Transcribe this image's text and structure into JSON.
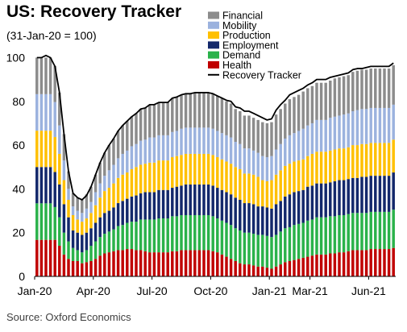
{
  "title": "US: Recovery Tracker",
  "subtitle": "(31-Jan-20 = 100)",
  "source": "Source: Oxford Economics",
  "chart_data": {
    "type": "bar",
    "stacked": true,
    "y_ticks": [
      "0",
      "20",
      "40",
      "60",
      "80",
      "100"
    ],
    "ylim": [
      0,
      108
    ],
    "x_tick_labels": [
      "Jan-20",
      "Apr-20",
      "Jul-20",
      "Oct-20",
      "Jan-21",
      "Mar-21",
      "Jun-21"
    ],
    "x_tick_weeks": [
      0,
      13,
      26,
      39,
      52,
      61,
      74
    ],
    "weeks": 80,
    "legend_position": "top-right",
    "grid": false,
    "legend": [
      {
        "label": "Financial",
        "color": "#8c8c8c",
        "kind": "bar"
      },
      {
        "label": "Mobility",
        "color": "#9bb2de",
        "kind": "bar"
      },
      {
        "label": "Production",
        "color": "#ffc000",
        "kind": "bar"
      },
      {
        "label": "Employment",
        "color": "#13286b",
        "kind": "bar"
      },
      {
        "label": "Demand",
        "color": "#2ab24a",
        "kind": "bar"
      },
      {
        "label": "Health",
        "color": "#c00000",
        "kind": "bar"
      },
      {
        "label": "Recovery Tracker",
        "color": "#000000",
        "kind": "line"
      }
    ],
    "series": [
      {
        "name": "Health",
        "color": "#c00000",
        "values": [
          16.7,
          16.7,
          16.7,
          16.7,
          16.7,
          14,
          10,
          8,
          7,
          7,
          6,
          6.5,
          7,
          8,
          9.5,
          10.5,
          11,
          11.5,
          12,
          12,
          12.5,
          12.5,
          12,
          12,
          11.5,
          11,
          11,
          11,
          11,
          11,
          11.5,
          11.5,
          12,
          12,
          12,
          12,
          12,
          12,
          12,
          11.5,
          11,
          10,
          9,
          8,
          7,
          6,
          5.5,
          5.5,
          5,
          4.5,
          4.5,
          4,
          3.5,
          4.5,
          5.5,
          6.5,
          7,
          7.5,
          8,
          8.5,
          9,
          9.5,
          10,
          10,
          10,
          10.5,
          10.5,
          11,
          11,
          11.5,
          12,
          12,
          12,
          12,
          12.5,
          12.5,
          12.5,
          12.5,
          12.5,
          13
        ]
      },
      {
        "name": "Demand",
        "color": "#2ab24a",
        "values": [
          16.7,
          16.7,
          16.7,
          16.7,
          15,
          13,
          10,
          8,
          6,
          5,
          5,
          5.5,
          7,
          8,
          8.5,
          9,
          9.5,
          10,
          11,
          11.5,
          12,
          12.5,
          13,
          14,
          14.5,
          15,
          15,
          15.5,
          15.5,
          15.5,
          16,
          16,
          16,
          16,
          16,
          16,
          16,
          16,
          16,
          16,
          15.5,
          15.5,
          15.5,
          15.5,
          15,
          15,
          14.5,
          14.5,
          14.5,
          14.5,
          14.5,
          14.5,
          14.5,
          14.5,
          15,
          15.5,
          15.5,
          16,
          16,
          16,
          16.5,
          16.5,
          17,
          17,
          17,
          17,
          17,
          17,
          17,
          17,
          17,
          17,
          17,
          17,
          17,
          17,
          17,
          17,
          17,
          17.5
        ]
      },
      {
        "name": "Employment",
        "color": "#13286b",
        "values": [
          16.6,
          16.6,
          16.6,
          16.6,
          16,
          15,
          13,
          11,
          8,
          8,
          8,
          8,
          8,
          8.5,
          9,
          9.5,
          9.5,
          10,
          10.5,
          11,
          11,
          11.5,
          12,
          12,
          12.5,
          12.5,
          12.5,
          13,
          13,
          13,
          13,
          13.5,
          13.5,
          14,
          14,
          14,
          14,
          14,
          14,
          14,
          14,
          14,
          14,
          14,
          14,
          14,
          13.5,
          13.5,
          13.5,
          13,
          13,
          13,
          13,
          14,
          14,
          14.5,
          15,
          15,
          15,
          15,
          15.5,
          15.5,
          15.5,
          15.5,
          15.5,
          15.5,
          16,
          16,
          16,
          16,
          16,
          16,
          16.5,
          16.5,
          16.5,
          16.5,
          16.5,
          16.5,
          16.5,
          17
        ]
      },
      {
        "name": "Production",
        "color": "#ffc000",
        "values": [
          16.6,
          16.6,
          16.6,
          16.6,
          16,
          14,
          11,
          8,
          7,
          6,
          6,
          6.5,
          7,
          8,
          9,
          10,
          10.5,
          11,
          11.5,
          12,
          12,
          12.5,
          13,
          13,
          13,
          13.5,
          13.5,
          13.5,
          13.5,
          13.5,
          14,
          14,
          14,
          14,
          14,
          14,
          14,
          14,
          14,
          14,
          14,
          14,
          14,
          14,
          14,
          14,
          13.5,
          13.5,
          13.5,
          13.5,
          12,
          12,
          13,
          13.5,
          14,
          14,
          14,
          14,
          14,
          14,
          14,
          14.5,
          14.5,
          14.5,
          14.5,
          14.5,
          14.5,
          14.5,
          14.5,
          14.5,
          15,
          15,
          15,
          15,
          15,
          15,
          15,
          15,
          15,
          15
        ]
      },
      {
        "name": "Mobility",
        "color": "#9bb2de",
        "values": [
          16.7,
          16.7,
          16.7,
          16.7,
          16,
          13,
          9,
          5,
          4,
          4,
          4,
          4.5,
          5,
          6,
          6.5,
          7,
          8,
          8.5,
          9,
          9.5,
          10,
          10.5,
          10.5,
          11,
          11,
          11.5,
          11.5,
          11.5,
          11.5,
          11.5,
          11.5,
          11.5,
          12,
          12,
          12,
          12,
          12,
          12,
          12,
          12,
          12,
          12,
          12,
          12,
          11.5,
          11.5,
          11.5,
          11.5,
          11,
          11,
          11,
          11,
          11,
          11.5,
          12,
          12.5,
          13,
          13,
          13.5,
          14,
          14,
          14,
          14.5,
          14.5,
          14.5,
          15,
          15,
          15,
          15.5,
          15.5,
          15.5,
          16,
          16,
          16,
          16,
          16,
          16,
          16,
          16,
          16
        ]
      },
      {
        "name": "Financial",
        "color": "#8c8c8c",
        "values": [
          16.7,
          16.7,
          16.7,
          16.7,
          16.5,
          15,
          12,
          8,
          6,
          6,
          6,
          6.5,
          7,
          8,
          9.5,
          10.5,
          11.5,
          12,
          12.5,
          13,
          13.5,
          13.5,
          14,
          14.5,
          14.5,
          15,
          15,
          15,
          15,
          15,
          15.5,
          15.5,
          15.5,
          15.5,
          15.5,
          16,
          16,
          16,
          16,
          16,
          16,
          16,
          15.5,
          15.5,
          15,
          15,
          15,
          15,
          15,
          15,
          15.5,
          15.5,
          15.5,
          16,
          16,
          16,
          16.5,
          16.5,
          16.5,
          17,
          17,
          17,
          17,
          17,
          17,
          17,
          17.5,
          17.5,
          17.5,
          17.5,
          18,
          18,
          18,
          18,
          18,
          18,
          18,
          18,
          18,
          18
        ]
      }
    ],
    "recovery_tracker": [
      100,
      100,
      101,
      100,
      96,
      84,
      65,
      48,
      38,
      36,
      35,
      37,
      41,
      46.5,
      52,
      56.5,
      60,
      63,
      66.5,
      69,
      71,
      73,
      74.5,
      76.5,
      77,
      78.5,
      78.5,
      79.5,
      79.5,
      79.5,
      81.5,
      82,
      83,
      83.5,
      83.5,
      84,
      84,
      84,
      84,
      83.5,
      82.5,
      81.5,
      80.5,
      80,
      77.5,
      77,
      75.5,
      75.5,
      74.5,
      73.5,
      72.5,
      71.5,
      72,
      76,
      78.5,
      80.5,
      83,
      84,
      85,
      86,
      87.5,
      88.5,
      90,
      90,
      90,
      91,
      91.5,
      92,
      92.5,
      93,
      94.5,
      95,
      95,
      95.5,
      96,
      96,
      96,
      96,
      96,
      97.5
    ]
  }
}
